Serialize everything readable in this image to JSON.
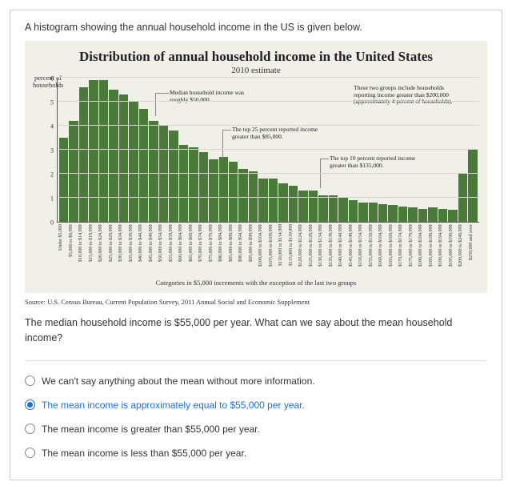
{
  "intro": "A histogram showing the annual household income in the US is given below.",
  "chart": {
    "type": "histogram",
    "title": "Distribution of annual household income in the United States",
    "subtitle": "2010 estimate",
    "y_title_line1": "percent of",
    "y_title_line2": "households",
    "y_max": 6,
    "y_ticks": [
      0,
      1,
      2,
      3,
      4,
      5,
      6
    ],
    "bar_color": "#4a7a3a",
    "background_color": "#f0efe8",
    "grid_color": "#d8d6cc",
    "values": [
      3.5,
      4.2,
      5.6,
      5.9,
      5.9,
      5.5,
      5.3,
      5.0,
      4.7,
      4.2,
      4.0,
      3.8,
      3.2,
      3.1,
      2.9,
      2.6,
      2.7,
      2.5,
      2.2,
      2.1,
      1.8,
      1.8,
      1.6,
      1.5,
      1.3,
      1.3,
      1.1,
      1.1,
      1.0,
      0.9,
      0.8,
      0.8,
      0.75,
      0.7,
      0.65,
      0.6,
      0.55,
      0.6,
      0.55,
      0.5,
      2.0,
      3.0
    ],
    "categories": [
      "Under $5,000",
      "$5,000 to $9,999",
      "$10,000 to $14,999",
      "$15,000 to $19,999",
      "$20,000 to $24,999",
      "$25,000 to $29,999",
      "$30,000 to $34,999",
      "$35,000 to $39,999",
      "$40,000 to $44,999",
      "$45,000 to $49,999",
      "$50,000 to $54,999",
      "$55,000 to $59,999",
      "$60,000 to $64,999",
      "$65,000 to $69,999",
      "$70,000 to $74,999",
      "$75,000 to $79,999",
      "$80,000 to $84,999",
      "$85,000 to $89,999",
      "$90,000 to $94,999",
      "$95,000 to $99,999",
      "$100,000 to $104,999",
      "$105,000 to $109,999",
      "$110,000 to $114,999",
      "$115,000 to $119,999",
      "$120,000 to $124,999",
      "$125,000 to $129,999",
      "$130,000 to $134,999",
      "$135,000 to $139,999",
      "$140,000 to $144,999",
      "$145,000 to $149,999",
      "$150,000 to $154,999",
      "$155,000 to $159,999",
      "$160,000 to $164,999",
      "$165,000 to $169,999",
      "$170,000 to $174,999",
      "$175,000 to $179,999",
      "$180,000 to $184,999",
      "$185,000 to $189,999",
      "$190,000 to $194,999",
      "$195,000 to $199,999",
      "$200,000 to $249,999",
      "$250,000 and over"
    ],
    "x_caption": "Categories in $5,000 increments with the exception of the last two groups",
    "annot_median_l1": "Median household income was",
    "annot_median_l2": "roughly $50,000.",
    "annot_last_l1": "These two groups include households",
    "annot_last_l2": "reporting income greater than $200,000",
    "annot_last_l3": "(approximately 4 percent of households).",
    "annot_top25_l1": "The top 25 percent reported income",
    "annot_top25_l2": "greater than $85,000.",
    "annot_top10_l1": "The top 10 percent reported income",
    "annot_top10_l2": "greater than $135,000."
  },
  "source": "Source: U.S. Census Bureau, Current Population Survey, 2011 Annual Social and Economic Supplement",
  "question": "The median household income is $55,000 per year.  What can we say about the mean household income?",
  "options": [
    {
      "label": "We can't say anything about the mean without more information.",
      "selected": false
    },
    {
      "label": "The mean income is approximately equal to $55,000 per year.",
      "selected": true
    },
    {
      "label": "The mean income is greater than $55,000 per year.",
      "selected": false
    },
    {
      "label": "The mean income is less than $55,000 per year.",
      "selected": false
    }
  ]
}
